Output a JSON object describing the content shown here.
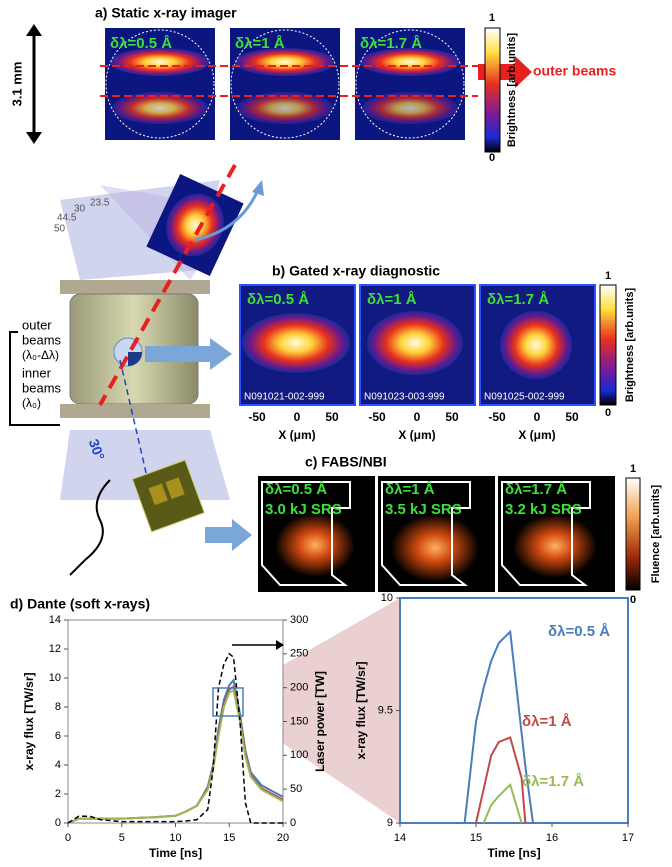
{
  "panel_a": {
    "title": "a) Static x-ray imager",
    "image_labels": [
      "δλ=0.5 Å",
      "δλ=1 Å",
      "δλ=1.7 Å"
    ],
    "scale_label": "3.1 mm",
    "arrow_label": "outer beams",
    "colorbar": {
      "max": 1,
      "min": 0,
      "label": "Brightness [arb.units]"
    }
  },
  "schematic": {
    "angles": [
      "23.5",
      "30",
      "44.5",
      "50"
    ],
    "outer_beams": [
      "outer",
      "beams"
    ],
    "outer_wavelength": "(λ₀-Δλ)",
    "inner_beams": [
      "inner",
      "beams"
    ],
    "inner_wavelength": "(λ₀)",
    "view_angle": "30°"
  },
  "panel_b": {
    "title": "b) Gated x-ray diagnostic",
    "image_labels": [
      "δλ=0.5 Å",
      "δλ=1 Å",
      "δλ=1.7 Å"
    ],
    "shot_ids": [
      "N091021-002-999",
      "N091023-003-999",
      "N091025-002-999"
    ],
    "x_ticks": [
      -50,
      0,
      50
    ],
    "x_label": "X (μm)",
    "colorbar": {
      "max": 1,
      "min": 0,
      "label": "Brightness [arb.units]"
    }
  },
  "panel_c": {
    "title": "c) FABS/NBI",
    "image_labels": [
      "δλ=0.5 Å",
      "δλ=1 Å",
      "δλ=1.7 Å"
    ],
    "srs_labels": [
      "3.0 kJ SRS",
      "3.5 kJ SRS",
      "3.2 kJ SRS"
    ],
    "colorbar": {
      "max": 1,
      "min": 0,
      "label": "Fluence [arb.units]"
    }
  },
  "panel_d": {
    "title": "d) Dante (soft x-rays)"
  },
  "chart_data": [
    {
      "type": "line",
      "xlabel": "Time [ns]",
      "ylabel": "x-ray flux [TW/sr]",
      "y2label": "Laser power [TW]",
      "x": [
        0,
        1,
        2,
        3,
        5,
        8,
        10,
        11,
        12,
        13,
        13.5,
        14,
        14.5,
        15,
        15.4,
        16,
        16.5,
        17,
        18,
        19,
        20
      ],
      "xlim": [
        0,
        20
      ],
      "xticks": [
        0,
        5,
        10,
        15,
        20
      ],
      "ylim": [
        0,
        14
      ],
      "yticks": [
        0,
        2,
        4,
        6,
        8,
        10,
        12,
        14
      ],
      "y2lim": [
        0,
        300
      ],
      "y2ticks": [
        0,
        50,
        100,
        150,
        200,
        250,
        300
      ],
      "series": [
        {
          "color": "#4a7ebb",
          "values": [
            0,
            0.3,
            0.3,
            0.3,
            0.3,
            0.4,
            0.5,
            0.8,
            1.2,
            2.5,
            4,
            6.5,
            8.5,
            9.5,
            9.85,
            7.5,
            5,
            3.5,
            2.6,
            2.2,
            1.8
          ]
        },
        {
          "color": "#be4b48",
          "values": [
            0,
            0.3,
            0.3,
            0.3,
            0.3,
            0.4,
            0.5,
            0.8,
            1.2,
            2.4,
            3.8,
            6.2,
            8.2,
            9.2,
            9.4,
            7.2,
            4.8,
            3.3,
            2.4,
            2,
            1.6
          ]
        },
        {
          "color": "#98b954",
          "values": [
            0,
            0.3,
            0.3,
            0.3,
            0.3,
            0.4,
            0.5,
            0.8,
            1.2,
            2.3,
            3.7,
            6,
            8,
            9,
            9.15,
            7,
            4.6,
            3.2,
            2.3,
            1.9,
            1.5
          ]
        },
        {
          "color": "#000000",
          "axis": "y2",
          "dashed": true,
          "values": [
            0,
            10,
            10,
            5,
            2,
            2,
            2,
            3,
            5,
            20,
            80,
            200,
            235,
            250,
            245,
            150,
            30,
            0,
            0,
            0,
            0
          ]
        }
      ]
    },
    {
      "type": "line",
      "xlabel": "Time [ns]",
      "ylabel": "x-ray flux [TW/sr]",
      "x": [
        14.85,
        15,
        15.1,
        15.2,
        15.3,
        15.45,
        15.6,
        15.65,
        15.75
      ],
      "xlim": [
        14,
        17
      ],
      "xticks": [
        14,
        15,
        16,
        17
      ],
      "ylim": [
        9,
        10
      ],
      "yticks": [
        9,
        9.5,
        10
      ],
      "series": [
        {
          "name": "δλ=0.5 Å",
          "color": "#4a7ebb",
          "values": [
            9,
            9.45,
            9.6,
            9.72,
            9.8,
            9.85,
            9.4,
            9.25,
            9
          ]
        },
        {
          "name": "δλ=1 Å",
          "color": "#be4b48",
          "values": [
            null,
            9,
            9.15,
            9.3,
            9.36,
            9.38,
            9.2,
            9,
            null
          ]
        },
        {
          "name": "δλ=1.7 Å",
          "color": "#98b954",
          "values": [
            null,
            null,
            9,
            9.08,
            9.12,
            9.17,
            9,
            null,
            null
          ]
        }
      ]
    }
  ]
}
